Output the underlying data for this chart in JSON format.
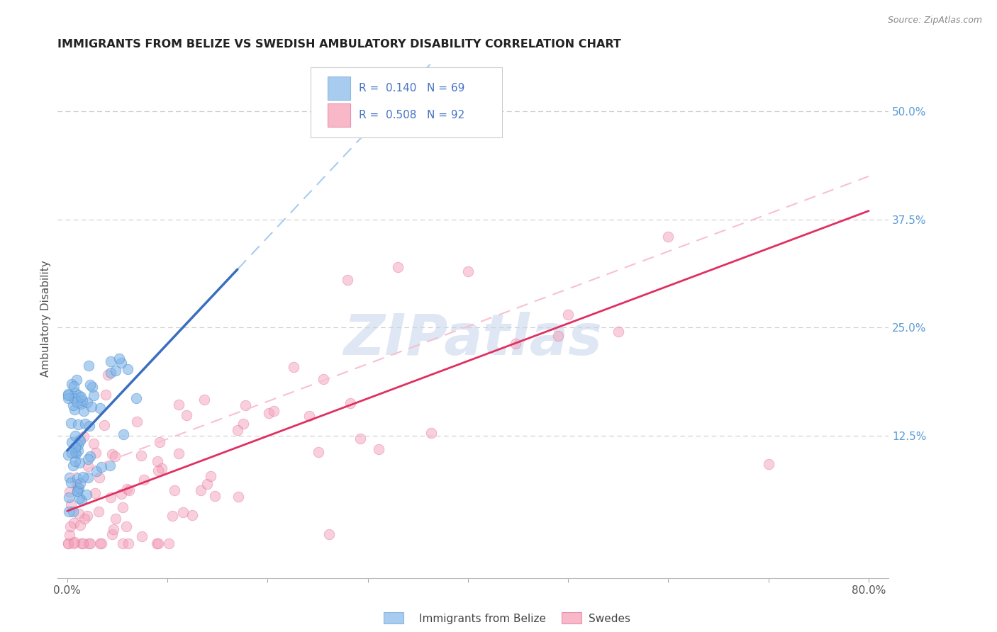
{
  "title": "IMMIGRANTS FROM BELIZE VS SWEDISH AMBULATORY DISABILITY CORRELATION CHART",
  "source": "Source: ZipAtlas.com",
  "ylabel": "Ambulatory Disability",
  "right_yticks": [
    "50.0%",
    "37.5%",
    "25.0%",
    "12.5%"
  ],
  "right_ytick_vals": [
    0.5,
    0.375,
    0.25,
    0.125
  ],
  "xlim": [
    0.0,
    0.8
  ],
  "ylim": [
    -0.04,
    0.56
  ],
  "legend_label1": "Immigrants from Belize",
  "legend_label2": "Swedes",
  "belize_scatter_color": "#7EB3E8",
  "belize_edge_color": "#4E8FCC",
  "swedes_scatter_color": "#F4A0B8",
  "swedes_edge_color": "#E070A0",
  "trendline_belize_solid": "#3A6EBF",
  "trendline_swedes_solid": "#E03060",
  "trendline_belize_dash": "#A8CCF0",
  "trendline_swedes_dash": "#F8C0D0",
  "watermark_color": "#C8D8EC",
  "grid_color": "#CCCCCC",
  "legend_box_color": "#DDDDDD",
  "r_n_color": "#4472C4",
  "title_color": "#222222",
  "source_color": "#888888",
  "ylabel_color": "#555555",
  "xtick_color": "#555555",
  "ytick_color": "#5B9BD5"
}
